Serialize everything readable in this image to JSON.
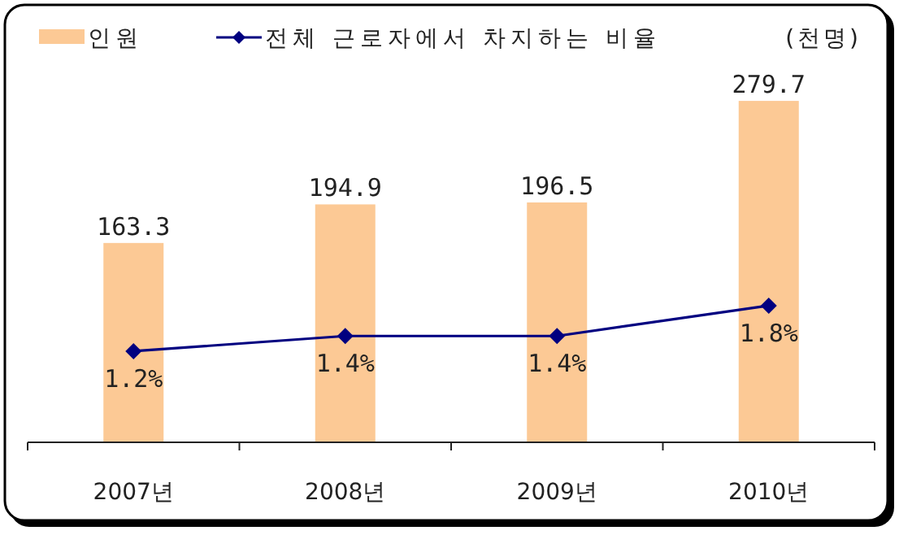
{
  "chart_data": {
    "type": "bar",
    "categories": [
      "2007년",
      "2008년",
      "2009년",
      "2010년"
    ],
    "series": [
      {
        "name": "인원",
        "color": "#fcc995",
        "values": [
          163.3,
          194.9,
          196.5,
          279.7
        ],
        "value_labels": [
          "163.3",
          "194.9",
          "196.5",
          "279.7"
        ]
      },
      {
        "name": "전체 근로자에서 차지하는 비율",
        "type": "line",
        "axis": "y2",
        "color": "#000080",
        "marker": "diamond",
        "line_style": "solid",
        "values": [
          1.2,
          1.4,
          1.4,
          1.8
        ],
        "value_labels": [
          "1.2%",
          "1.4%",
          "1.4%",
          "1.8%"
        ]
      }
    ],
    "annotations": [
      "(천명)"
    ],
    "legend": "top left",
    "grid": false
  }
}
